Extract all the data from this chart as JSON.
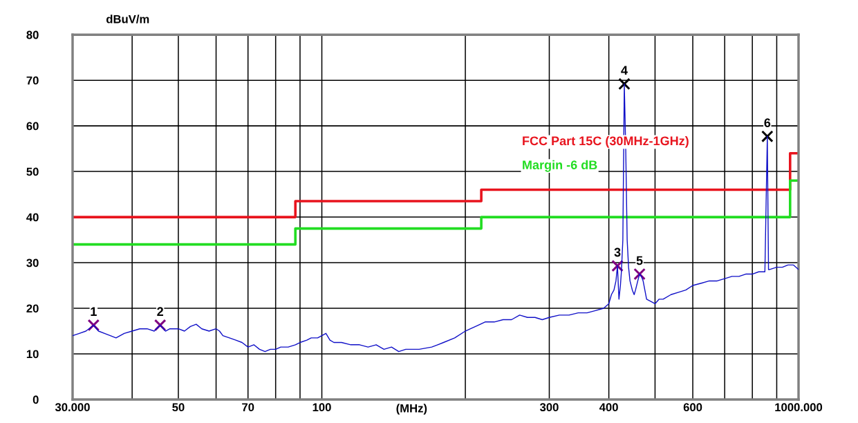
{
  "chart_data": {
    "type": "line",
    "xlabel": "(MHz)",
    "ylabel": "dBuV/m",
    "log": "x",
    "xlim": [
      30,
      1000
    ],
    "xticks": [
      {
        "value": 30,
        "label": "30.000"
      },
      {
        "value": 40,
        "label": null
      },
      50,
      {
        "value": 60,
        "label": null
      },
      70,
      {
        "value": 80,
        "label": null
      },
      {
        "value": 90,
        "label": null
      },
      100,
      {
        "value": 200,
        "label": null
      },
      300,
      400,
      {
        "value": 500,
        "label": null
      },
      600,
      {
        "value": 700,
        "label": null
      },
      {
        "value": 800,
        "label": null
      },
      {
        "value": 900,
        "label": null
      },
      {
        "value": 1000,
        "label": "1000.000"
      }
    ],
    "ylim": [
      0,
      80
    ],
    "yticks": [
      0,
      10,
      20,
      30,
      40,
      50,
      60,
      70,
      80
    ],
    "grid": true,
    "series": [
      {
        "color": "#1010c8",
        "x": [
          30,
          31,
          32,
          33.2,
          34,
          35,
          36,
          37,
          38.5,
          40,
          41.5,
          43,
          44.5,
          45.8,
          47,
          48,
          50,
          51.5,
          53,
          54.5,
          56,
          58,
          60,
          61,
          62,
          64,
          66,
          68,
          70,
          72,
          74,
          76,
          78,
          80,
          82,
          85,
          88,
          90,
          93,
          95,
          98,
          100,
          102,
          104,
          106,
          110,
          115,
          120,
          125,
          130,
          135,
          140,
          145,
          150,
          160,
          170,
          175,
          180,
          190,
          200,
          205,
          210,
          215,
          220,
          230,
          240,
          250,
          260,
          270,
          280,
          290,
          300,
          315,
          330,
          345,
          360,
          375,
          390,
          400,
          405,
          410,
          414,
          417,
          420,
          423,
          425,
          428,
          431,
          434,
          437,
          440,
          443,
          448,
          452,
          455,
          460,
          464,
          468,
          472,
          476,
          480,
          490,
          500,
          510,
          520,
          540,
          560,
          580,
          600,
          625,
          650,
          675,
          700,
          725,
          750,
          775,
          800,
          825,
          850,
          855,
          860,
          865,
          870,
          900,
          925,
          950,
          975,
          1000
        ],
        "values": [
          14,
          14.5,
          15,
          16.3,
          15,
          14.5,
          14,
          13.5,
          14.5,
          15,
          15.5,
          15.5,
          15,
          16.3,
          15,
          15.5,
          15.5,
          15,
          16,
          16.5,
          15.5,
          15,
          15.5,
          15,
          14,
          13.5,
          13,
          12.5,
          11.5,
          12,
          11,
          10.5,
          11,
          11,
          11.5,
          11.5,
          12,
          12.5,
          13,
          13.5,
          13.5,
          14,
          14.5,
          13,
          12.5,
          12.5,
          12,
          12,
          11.5,
          12,
          11,
          11.5,
          10.5,
          11,
          11,
          11.5,
          12,
          12.5,
          13.5,
          15,
          15.5,
          16,
          16.5,
          17,
          17,
          17.5,
          17.5,
          18.5,
          18,
          18,
          17.5,
          18,
          18.5,
          18.5,
          19,
          19,
          19.5,
          20,
          21,
          23,
          24,
          26,
          29.3,
          22,
          25,
          28,
          35,
          69.2,
          55,
          35,
          29,
          26,
          24,
          23,
          24,
          26,
          27.5,
          27,
          26,
          24,
          22,
          21.5,
          21,
          22,
          22,
          23,
          23.5,
          24,
          25,
          25.5,
          26,
          26,
          26.5,
          27,
          27,
          27.5,
          27.5,
          28,
          28,
          43,
          57.7,
          28.5,
          28.5,
          29,
          29,
          29.5,
          29.5,
          28.5
        ]
      },
      {
        "type": "step",
        "name": "FCC Part 15C (30MHz-1GHz)",
        "color": "#e8141e",
        "x": [
          30,
          88,
          216,
          960,
          1000
        ],
        "values": [
          40,
          43.5,
          46,
          54,
          54
        ]
      },
      {
        "type": "step",
        "name": "Margin -6 dB",
        "color": "#22dd22",
        "x": [
          30,
          88,
          216,
          960,
          1000
        ],
        "values": [
          34,
          37.5,
          40,
          48,
          48
        ]
      },
      {
        "type": "scatter",
        "marker": "cross",
        "x": [
          33.2,
          45.8,
          417,
          431,
          464,
          860
        ],
        "values": [
          16.3,
          16.3,
          29.3,
          69.2,
          27.5,
          57.7
        ],
        "colors": [
          "#800080",
          "#800080",
          "#800080",
          "#000000",
          "#800080",
          "#000000"
        ]
      }
    ],
    "annotations": [
      {
        "text": "1",
        "x": 33.2,
        "y": 16.3
      },
      {
        "text": "2",
        "x": 45.8,
        "y": 16.3
      },
      {
        "text": "3",
        "x": 417,
        "y": 29.3
      },
      {
        "text": "4",
        "x": 431,
        "y": 69.2
      },
      {
        "text": "5",
        "x": 464,
        "y": 27.5
      },
      {
        "text": "6",
        "x": 860,
        "y": 57.7
      }
    ]
  }
}
